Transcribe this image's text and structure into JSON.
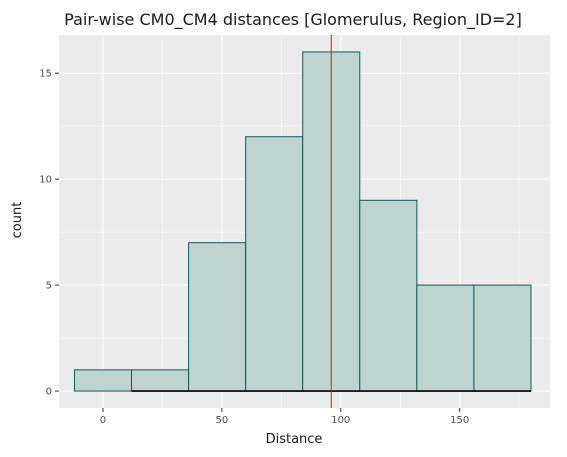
{
  "chart_data": {
    "type": "bar",
    "title": "Pair-wise CM0_CM4 distances [Glomerulus, Region_ID=2]",
    "xlabel": "Distance",
    "ylabel": "count",
    "bins": [
      {
        "x0": -12,
        "x1": 12,
        "count": 1
      },
      {
        "x0": 12,
        "x1": 36,
        "count": 1
      },
      {
        "x0": 36,
        "x1": 60,
        "count": 7
      },
      {
        "x0": 60,
        "x1": 84,
        "count": 12
      },
      {
        "x0": 84,
        "x1": 108,
        "count": 16
      },
      {
        "x0": 108,
        "x1": 132,
        "count": 9
      },
      {
        "x0": 132,
        "x1": 156,
        "count": 5
      },
      {
        "x0": 156,
        "x1": 180,
        "count": 5
      }
    ],
    "vline": 96,
    "xlim": [
      -18.5,
      188
    ],
    "ylim": [
      -0.8,
      16.8
    ],
    "xticks": [
      0,
      50,
      100,
      150
    ],
    "yticks": [
      0,
      5,
      10,
      15
    ],
    "grid": true,
    "colors": {
      "panel": "#ebebeb",
      "grid": "#ffffff",
      "bar_fill": "#bed4d1",
      "bar_stroke": "#0e5c56",
      "vline": "#cc2222",
      "rug": "#000000"
    }
  }
}
